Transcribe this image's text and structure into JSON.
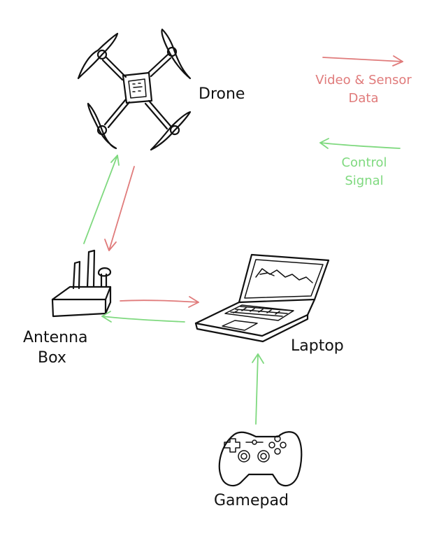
{
  "nodes": {
    "drone": "Drone",
    "antenna_box": [
      "Antenna",
      "Box"
    ],
    "laptop": "Laptop",
    "gamepad": "Gamepad"
  },
  "legend": {
    "video": [
      "Video & Sensor",
      "Data"
    ],
    "control": [
      "Control",
      "Signal"
    ]
  },
  "colors": {
    "video_sensor_data": "#e07b7b",
    "control_signal": "#7fd97f",
    "ink": "#111111"
  },
  "connections": [
    {
      "from": "antenna_box",
      "to": "drone",
      "type": "control"
    },
    {
      "from": "drone",
      "to": "antenna_box",
      "type": "video"
    },
    {
      "from": "antenna_box",
      "to": "laptop",
      "type": "video"
    },
    {
      "from": "laptop",
      "to": "antenna_box",
      "type": "control"
    },
    {
      "from": "gamepad",
      "to": "laptop",
      "type": "control"
    }
  ]
}
